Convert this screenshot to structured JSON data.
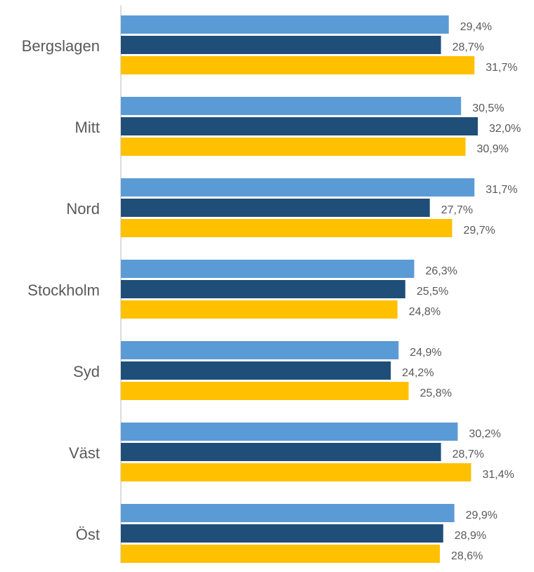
{
  "chart_data": {
    "type": "bar",
    "orientation": "horizontal",
    "categories": [
      "Bergslagen",
      "Mitt",
      "Nord",
      "Stockholm",
      "Syd",
      "Väst",
      "Öst"
    ],
    "series": [
      {
        "color": "#5b9bd5",
        "values": [
          29.4,
          30.5,
          31.7,
          26.3,
          24.9,
          30.2,
          29.9
        ],
        "value_labels": [
          "29,4%",
          "30,5%",
          "31,7%",
          "26,3%",
          "24,9%",
          "30,2%",
          "29,9%"
        ]
      },
      {
        "color": "#1f4e79",
        "values": [
          28.7,
          32.0,
          27.7,
          25.5,
          24.2,
          28.7,
          28.9
        ],
        "value_labels": [
          "28,7%",
          "32,0%",
          "27,7%",
          "25,5%",
          "24,2%",
          "28,7%",
          "28,9%"
        ]
      },
      {
        "color": "#ffc000",
        "values": [
          31.7,
          30.9,
          29.7,
          24.8,
          25.8,
          31.4,
          28.6
        ],
        "value_labels": [
          "31,7%",
          "30,9%",
          "29,7%",
          "24,8%",
          "25,8%",
          "31,4%",
          "28,6%"
        ]
      }
    ]
  }
}
